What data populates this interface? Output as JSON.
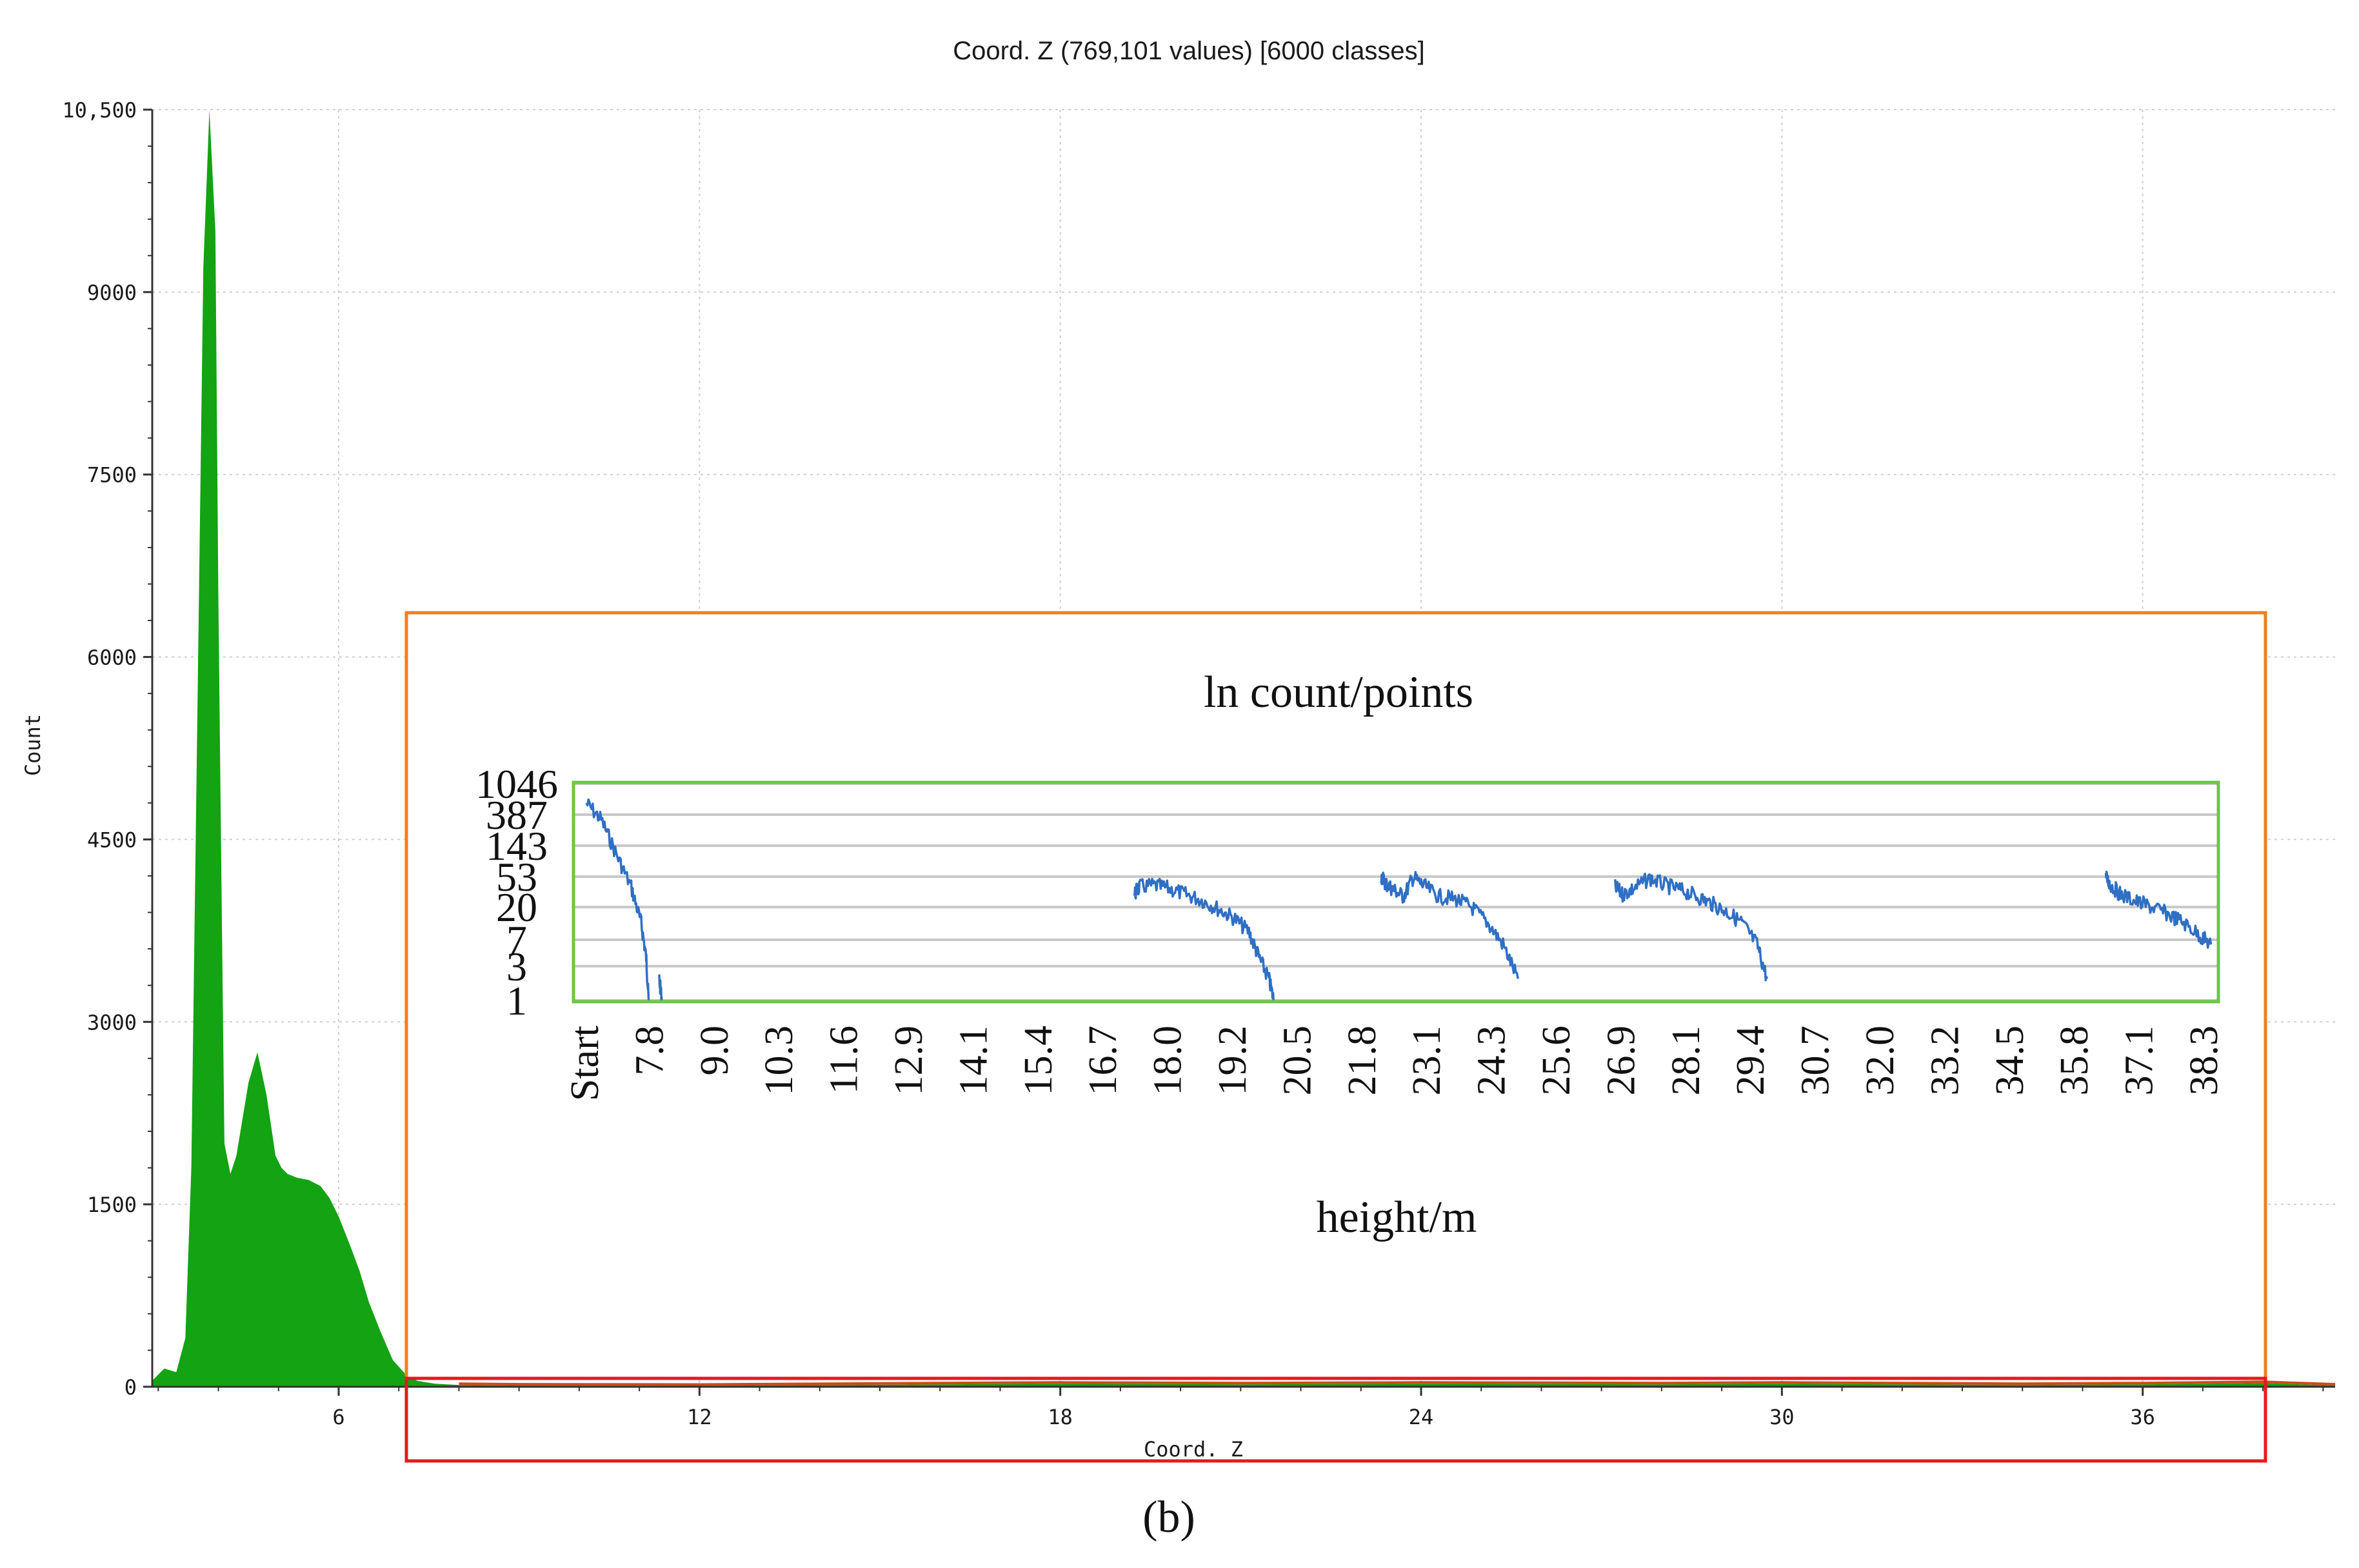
{
  "chart_data": [
    {
      "type": "area",
      "title": "Coord. Z (769,101 values)  [6000 classes]",
      "xlabel": "Coord. Z",
      "ylabel": "Count",
      "xlim": [
        2.9,
        39.2
      ],
      "ylim": [
        0,
        10500
      ],
      "x_ticks": [
        6,
        12,
        18,
        24,
        30,
        36
      ],
      "y_tick_labels": [
        "0",
        "1500",
        "3000",
        "4500",
        "6000",
        "7500",
        "9000",
        "10,500"
      ],
      "y_tick_values": [
        0,
        1500,
        3000,
        4500,
        6000,
        7500,
        9000,
        10500
      ],
      "grid": true,
      "colors": {
        "fill": "#13a313",
        "tail": "#cc4a1a",
        "grid": "#cfcfcf"
      },
      "series": [
        {
          "x": [
            2.9,
            3.1,
            3.3,
            3.45,
            3.55,
            3.65,
            3.75,
            3.85,
            3.95,
            4.0,
            4.05,
            4.1,
            4.2,
            4.3,
            4.5,
            4.65,
            4.8,
            4.95,
            5.05,
            5.15,
            5.3,
            5.5,
            5.7,
            5.85,
            6.0,
            6.2,
            6.35,
            6.5,
            6.7,
            6.9,
            7.1,
            7.3,
            7.6,
            8.0,
            9.0,
            12.0,
            16.0,
            18.0,
            21.0,
            24.0,
            28.0,
            30.0,
            34.0,
            36.0,
            38.0,
            39.2
          ],
          "y": [
            50,
            150,
            120,
            400,
            1800,
            5500,
            9200,
            10500,
            9500,
            6500,
            4200,
            2000,
            1750,
            1900,
            2500,
            2750,
            2400,
            1900,
            1800,
            1750,
            1720,
            1700,
            1650,
            1550,
            1400,
            1150,
            950,
            700,
            450,
            220,
            110,
            50,
            25,
            15,
            10,
            8,
            20,
            25,
            20,
            25,
            20,
            25,
            15,
            20,
            30,
            10
          ]
        }
      ]
    },
    {
      "type": "line",
      "title": "ln count/points",
      "xlabel": "height/m",
      "y_scale": "log",
      "ylim": [
        1,
        1046
      ],
      "y_tick_labels": [
        "1",
        "3",
        "7",
        "20",
        "53",
        "143",
        "387",
        "1046"
      ],
      "x_tick_labels": [
        "Start",
        "7.8",
        "9.0",
        "10.3",
        "11.6",
        "12.9",
        "14.1",
        "15.4",
        "16.7",
        "18.0",
        "19.2",
        "20.5",
        "21.8",
        "23.1",
        "24.3",
        "25.6",
        "26.9",
        "28.1",
        "29.4",
        "30.7",
        "32.0",
        "33.2",
        "34.5",
        "35.8",
        "37.1",
        "38.3"
      ],
      "grid": true,
      "colors": {
        "line": "#2f6fc4",
        "frame": "#6cc644",
        "grid": "#c8c8c8"
      },
      "series": [
        {
          "segments": [
            {
              "x": [
                6.5,
                6.8,
                7.1,
                7.4,
                7.6,
                7.7,
                7.75
              ],
              "y": [
                560,
                330,
                110,
                38,
                12,
                4,
                1
              ]
            },
            {
              "x": [
                7.95,
                8.0
              ],
              "y": [
                2,
                1
              ]
            },
            {
              "x": [
                17.3,
                17.4,
                17.7,
                18.0,
                18.3,
                18.6,
                18.9,
                19.2,
                19.5,
                19.7,
                19.9,
                20.0
              ],
              "y": [
                30,
                38,
                40,
                36,
                30,
                25,
                19,
                14,
                9,
                4,
                2,
                1
              ]
            },
            {
              "x": [
                22.15,
                22.25,
                22.4,
                22.6,
                22.8,
                23.0,
                23.3,
                23.6,
                23.9,
                24.2,
                24.5,
                24.8
              ],
              "y": [
                55,
                42,
                35,
                28,
                52,
                40,
                28,
                26,
                20,
                12,
                6,
                2
              ]
            },
            {
              "x": [
                26.75,
                26.9,
                27.1,
                27.4,
                27.7,
                28.0,
                28.3,
                28.6,
                28.9,
                29.2,
                29.5,
                29.7
              ],
              "y": [
                38,
                30,
                36,
                50,
                40,
                34,
                28,
                22,
                17,
                12,
                6,
                2
              ]
            },
            {
              "x": [
                36.4,
                36.5,
                36.7,
                37.0,
                37.3,
                37.6,
                37.9,
                38.2,
                38.4
              ],
              "y": [
                52,
                40,
                30,
                24,
                20,
                16,
                12,
                8,
                6
              ]
            }
          ]
        }
      ]
    }
  ],
  "caption": "(b)"
}
